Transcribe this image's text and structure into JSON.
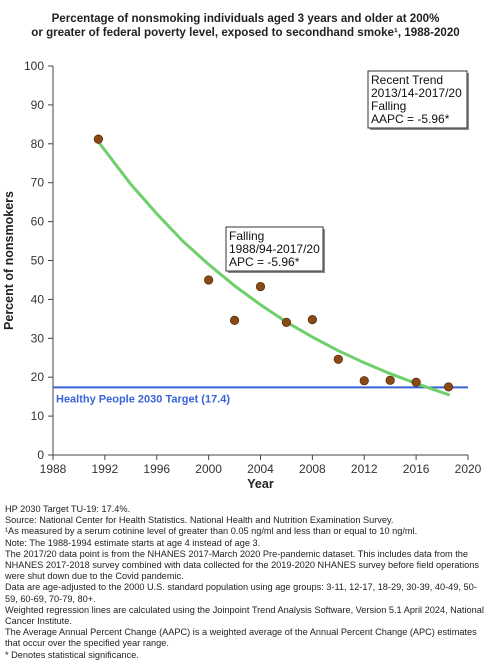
{
  "title_lines": [
    "Percentage of nonsmoking individuals aged 3 years and older at 200%",
    "or greater of federal poverty level, exposed to secondhand smoke¹, 1988-2020"
  ],
  "chart_data": {
    "type": "scatter",
    "xlabel": "Year",
    "ylabel": "Percent of nonsmokers",
    "xlim": [
      1988,
      2020
    ],
    "ylim": [
      0,
      100
    ],
    "x_ticks": [
      1988,
      1992,
      1996,
      2000,
      2004,
      2008,
      2012,
      2016,
      2020
    ],
    "y_ticks": [
      0,
      10,
      20,
      30,
      40,
      50,
      60,
      70,
      80,
      90,
      100
    ],
    "grid": false,
    "points": [
      {
        "x": 1991.5,
        "y": 81.2
      },
      {
        "x": 2000.0,
        "y": 45.0
      },
      {
        "x": 2002.0,
        "y": 34.6
      },
      {
        "x": 2004.0,
        "y": 43.3
      },
      {
        "x": 2006.0,
        "y": 34.1
      },
      {
        "x": 2008.0,
        "y": 34.8
      },
      {
        "x": 2010.0,
        "y": 24.6
      },
      {
        "x": 2012.0,
        "y": 19.1
      },
      {
        "x": 2014.0,
        "y": 19.2
      },
      {
        "x": 2016.0,
        "y": 18.7
      },
      {
        "x": 2018.5,
        "y": 17.5
      }
    ],
    "trend_line": {
      "x": [
        1991.5,
        1994,
        1996,
        1998,
        2000,
        2002,
        2004,
        2006,
        2008,
        2010,
        2012,
        2014,
        2016,
        2018.5
      ],
      "y": [
        80.5,
        69.6,
        62.0,
        55.0,
        49.0,
        43.5,
        38.6,
        34.2,
        30.3,
        26.8,
        23.7,
        20.9,
        18.4,
        15.5
      ]
    },
    "target": {
      "value": 17.4,
      "label": "Healthy People 2030 Target (17.4)"
    },
    "annotations": [
      {
        "lines": [
          "Recent Trend",
          "2013/14-2017/20",
          "Falling",
          "AAPC = -5.96*"
        ]
      },
      {
        "lines": [
          "Falling",
          "1988/94-2017/20",
          "APC = -5.96*"
        ]
      }
    ],
    "colors": {
      "point_fill": "#8a4a16",
      "point_stroke": "#5a2e08",
      "trend": "#6fcf6a",
      "target": "#3a63d8",
      "axis": "#444444"
    }
  },
  "footnotes": [
    "HP 2030 Target TU-19: 17.4%.",
    "Source: National Center for Health Statistics. National Health and Nutrition Examination Survey.",
    "¹As measured by a serum cotinine level of greater than 0.05 ng/ml and less than or equal to 10 ng/ml.",
    "Note: The 1988-1994 estimate starts at age 4 instead of age 3.",
    "The 2017/20 data point is from the NHANES 2017-March 2020 Pre-pandemic dataset. This includes data from the NHANES 2017-2018 survey combined with data collected for the 2019-2020 NHANES survey before field operations were shut down due to the Covid pandemic.",
    "Data are age-adjusted to the 2000 U.S. standard population using age groups: 3-11, 12-17, 18-29, 30-39, 40-49, 50-59, 60-69, 70-79, 80+.",
    "Weighted regression lines are calculated using the Joinpoint Trend Analysis Software, Version 5.1 April 2024, National Cancer Institute.",
    "The Average Annual Percent Change (AAPC) is a weighted average of the Annual Percent Change (APC) estimates that occur over the specified year range.",
    "* Denotes statistical significance."
  ]
}
